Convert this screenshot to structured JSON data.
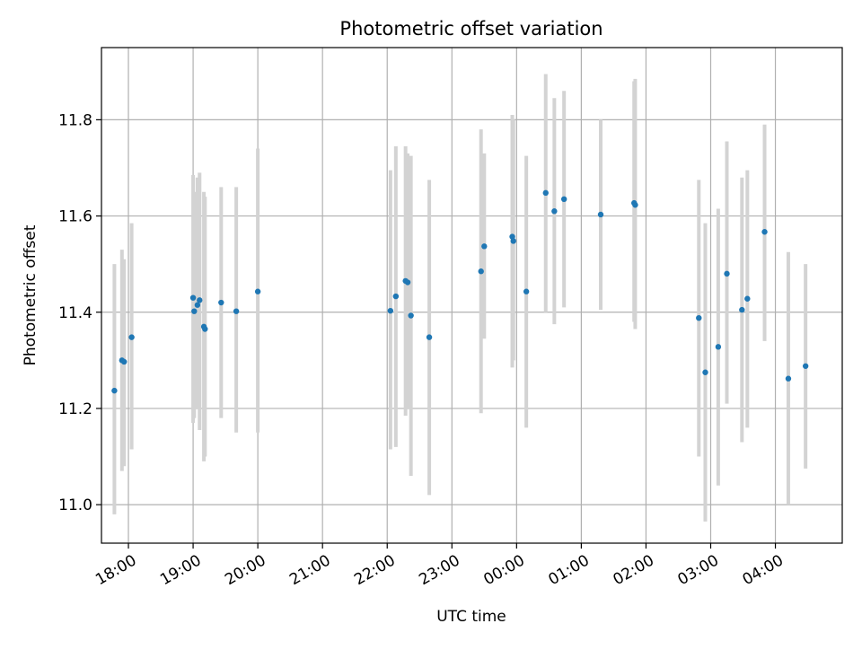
{
  "chart_data": {
    "type": "scatter",
    "title": "Photometric offset variation",
    "xlabel": "UTC time",
    "ylabel": "Photometric offset",
    "x_tick_labels": [
      "18:00",
      "19:00",
      "20:00",
      "21:00",
      "22:00",
      "23:00",
      "00:00",
      "01:00",
      "02:00",
      "03:00",
      "04:00"
    ],
    "y_tick_labels": [
      "11.0",
      "11.2",
      "11.4",
      "11.6",
      "11.8"
    ],
    "y_ticks": [
      11.0,
      11.2,
      11.4,
      11.6,
      11.8
    ],
    "xlim": [
      "17:35",
      "05:02"
    ],
    "ylim": [
      10.92,
      11.95
    ],
    "grid": true,
    "colors": {
      "points": "#1f77b4",
      "errorbars": "#d3d3d3",
      "grid": "#b0b0b0"
    },
    "series": [
      {
        "points": [
          {
            "t": "17:47",
            "y": 11.237,
            "lo": 10.98,
            "hi": 11.5
          },
          {
            "t": "17:54",
            "y": 11.3,
            "lo": 11.07,
            "hi": 11.53
          },
          {
            "t": "17:56",
            "y": 11.297,
            "lo": 11.08,
            "hi": 11.51
          },
          {
            "t": "18:03",
            "y": 11.348,
            "lo": 11.115,
            "hi": 11.585
          },
          {
            "t": "19:00",
            "y": 11.43,
            "lo": 11.17,
            "hi": 11.685
          },
          {
            "t": "19:01",
            "y": 11.402,
            "lo": 11.18,
            "hi": 11.65
          },
          {
            "t": "19:04",
            "y": 11.415,
            "lo": 11.2,
            "hi": 11.68
          },
          {
            "t": "19:06",
            "y": 11.425,
            "lo": 11.155,
            "hi": 11.69
          },
          {
            "t": "19:10",
            "y": 11.37,
            "lo": 11.09,
            "hi": 11.65
          },
          {
            "t": "19:11",
            "y": 11.365,
            "lo": 11.1,
            "hi": 11.64
          },
          {
            "t": "19:26",
            "y": 11.42,
            "lo": 11.18,
            "hi": 11.66
          },
          {
            "t": "19:40",
            "y": 11.402,
            "lo": 11.15,
            "hi": 11.66
          },
          {
            "t": "20:00",
            "y": 11.443,
            "lo": 11.15,
            "hi": 11.74
          },
          {
            "t": "22:03",
            "y": 11.403,
            "lo": 11.115,
            "hi": 11.695
          },
          {
            "t": "22:08",
            "y": 11.433,
            "lo": 11.12,
            "hi": 11.745
          },
          {
            "t": "22:17",
            "y": 11.465,
            "lo": 11.185,
            "hi": 11.745
          },
          {
            "t": "22:19",
            "y": 11.462,
            "lo": 11.2,
            "hi": 11.73
          },
          {
            "t": "22:22",
            "y": 11.393,
            "lo": 11.06,
            "hi": 11.725
          },
          {
            "t": "22:39",
            "y": 11.348,
            "lo": 11.02,
            "hi": 11.675
          },
          {
            "t": "23:27",
            "y": 11.485,
            "lo": 11.19,
            "hi": 11.78
          },
          {
            "t": "23:30",
            "y": 11.537,
            "lo": 11.345,
            "hi": 11.73
          },
          {
            "t": "23:56",
            "y": 11.557,
            "lo": 11.285,
            "hi": 11.81
          },
          {
            "t": "23:57",
            "y": 11.548,
            "lo": 11.3,
            "hi": 11.8
          },
          {
            "t": "00:09",
            "y": 11.443,
            "lo": 11.16,
            "hi": 11.725
          },
          {
            "t": "00:27",
            "y": 11.648,
            "lo": 11.4,
            "hi": 11.895
          },
          {
            "t": "00:35",
            "y": 11.61,
            "lo": 11.375,
            "hi": 11.845
          },
          {
            "t": "00:44",
            "y": 11.635,
            "lo": 11.41,
            "hi": 11.86
          },
          {
            "t": "01:18",
            "y": 11.603,
            "lo": 11.405,
            "hi": 11.8
          },
          {
            "t": "01:49",
            "y": 11.627,
            "lo": 11.38,
            "hi": 11.88
          },
          {
            "t": "01:50",
            "y": 11.623,
            "lo": 11.365,
            "hi": 11.885
          },
          {
            "t": "02:49",
            "y": 11.388,
            "lo": 11.1,
            "hi": 11.675
          },
          {
            "t": "02:55",
            "y": 11.275,
            "lo": 10.965,
            "hi": 11.585
          },
          {
            "t": "03:07",
            "y": 11.328,
            "lo": 11.04,
            "hi": 11.615
          },
          {
            "t": "03:15",
            "y": 11.48,
            "lo": 11.21,
            "hi": 11.755
          },
          {
            "t": "03:29",
            "y": 11.405,
            "lo": 11.13,
            "hi": 11.68
          },
          {
            "t": "03:34",
            "y": 11.428,
            "lo": 11.16,
            "hi": 11.695
          },
          {
            "t": "03:50",
            "y": 11.567,
            "lo": 11.34,
            "hi": 11.79
          },
          {
            "t": "04:12",
            "y": 11.262,
            "lo": 11.0,
            "hi": 11.525
          },
          {
            "t": "04:28",
            "y": 11.288,
            "lo": 11.075,
            "hi": 11.5
          }
        ]
      }
    ]
  }
}
